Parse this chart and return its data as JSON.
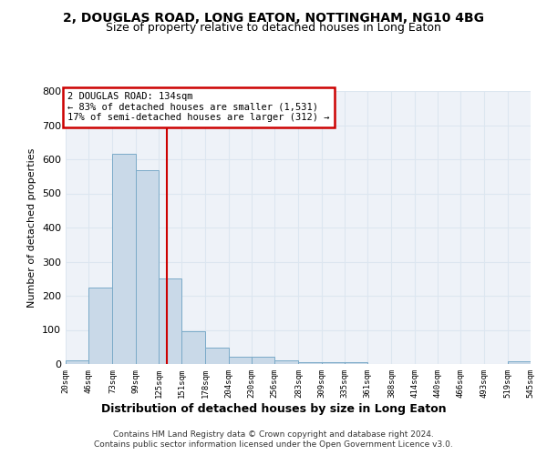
{
  "title1": "2, DOUGLAS ROAD, LONG EATON, NOTTINGHAM, NG10 4BG",
  "title2": "Size of property relative to detached houses in Long Eaton",
  "xlabel": "Distribution of detached houses by size in Long Eaton",
  "ylabel": "Number of detached properties",
  "footer1": "Contains HM Land Registry data © Crown copyright and database right 2024.",
  "footer2": "Contains public sector information licensed under the Open Government Licence v3.0.",
  "annotation_line1": "2 DOUGLAS ROAD: 134sqm",
  "annotation_line2": "← 83% of detached houses are smaller (1,531)",
  "annotation_line3": "17% of semi-detached houses are larger (312) →",
  "property_size": 134,
  "bin_edges": [
    20,
    46,
    73,
    99,
    125,
    151,
    178,
    204,
    230,
    256,
    283,
    309,
    335,
    361,
    388,
    414,
    440,
    466,
    493,
    519,
    545
  ],
  "bar_heights": [
    10,
    225,
    615,
    567,
    252,
    95,
    48,
    22,
    22,
    12,
    6,
    5,
    5,
    0,
    0,
    0,
    0,
    0,
    0,
    7
  ],
  "bar_color": "#c9d9e8",
  "bar_edge_color": "#7aaac8",
  "vline_color": "#cc0000",
  "vline_x": 134,
  "annotation_box_color": "#cc0000",
  "grid_color": "#dce6f0",
  "background_color": "#eef2f8",
  "ylim": [
    0,
    800
  ],
  "yticks": [
    0,
    100,
    200,
    300,
    400,
    500,
    600,
    700,
    800
  ]
}
